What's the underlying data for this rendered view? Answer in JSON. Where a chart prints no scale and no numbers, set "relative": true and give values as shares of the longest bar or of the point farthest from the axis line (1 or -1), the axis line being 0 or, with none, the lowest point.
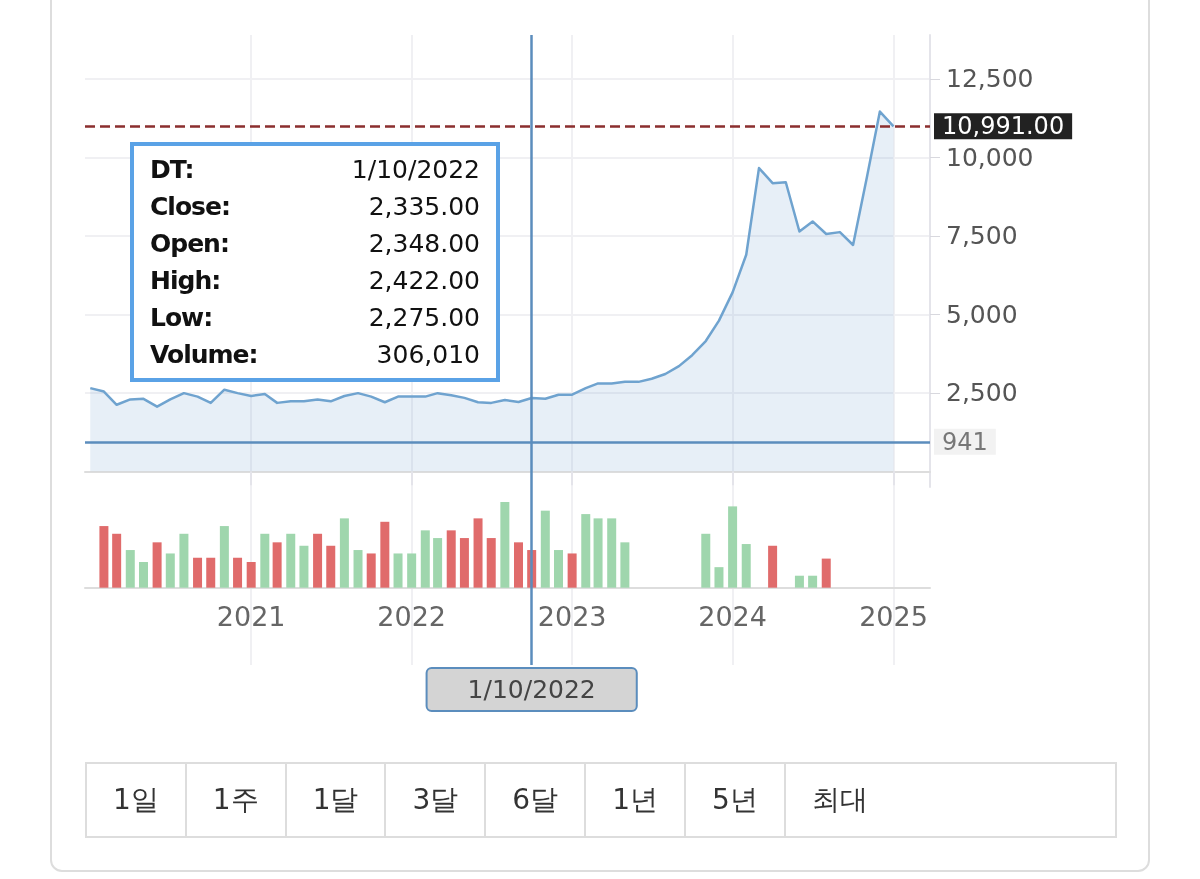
{
  "chart_data": [
    {
      "type": "area",
      "x": [
        "2020-01",
        "2020-02",
        "2020-03",
        "2020-04",
        "2020-05",
        "2020-06",
        "2020-07",
        "2020-08",
        "2020-09",
        "2020-10",
        "2020-11",
        "2020-12",
        "2021-01",
        "2021-02",
        "2021-03",
        "2021-04",
        "2021-05",
        "2021-06",
        "2021-07",
        "2021-08",
        "2021-09",
        "2021-10",
        "2021-11",
        "2021-12",
        "2022-01",
        "2022-02",
        "2022-03",
        "2022-04",
        "2022-05",
        "2022-06",
        "2022-07",
        "2022-08",
        "2022-09",
        "2022-10",
        "2022-11",
        "2022-12",
        "2023-01",
        "2023-02",
        "2023-03",
        "2023-04",
        "2023-05",
        "2023-06",
        "2023-07",
        "2023-08",
        "2023-09",
        "2023-10",
        "2023-11",
        "2023-12",
        "2024-01",
        "2024-02",
        "2024-03",
        "2024-04",
        "2024-05",
        "2024-06",
        "2024-07",
        "2024-08",
        "2024-09",
        "2024-10",
        "2024-11",
        "2024-12",
        "2025-01"
      ],
      "series": [
        {
          "color": "#6fa3cf",
          "values": [
            2650,
            2540,
            2120,
            2290,
            2310,
            2060,
            2290,
            2490,
            2380,
            2180,
            2600,
            2490,
            2400,
            2460,
            2180,
            2230,
            2230,
            2290,
            2230,
            2400,
            2490,
            2380,
            2200,
            2380,
            2380,
            2380,
            2490,
            2420,
            2340,
            2200,
            2180,
            2270,
            2210,
            2335,
            2310,
            2440,
            2440,
            2650,
            2800,
            2800,
            2850,
            2850,
            2950,
            3100,
            3350,
            3700,
            4150,
            4800,
            5700,
            6900,
            9660,
            9180,
            9210,
            7640,
            7960,
            7560,
            7620,
            7210,
            9340,
            11460,
            10991
          ]
        }
      ],
      "xlim": [
        "2019-12-20",
        "2025-03-25"
      ],
      "xticks": [
        "2021",
        "2022",
        "2023",
        "2024",
        "2025"
      ],
      "ylim": [
        -500,
        13900
      ],
      "yticks": [
        {
          "value": 2500,
          "label": "2,500"
        },
        {
          "value": 5000,
          "label": "5,000"
        },
        {
          "value": 7500,
          "label": "7,500"
        },
        {
          "value": 10000,
          "label": "10,000"
        },
        {
          "value": 12500,
          "label": "12,500"
        }
      ],
      "grid": true,
      "tick_labels": "y",
      "ref_lines": [
        {
          "axis": "y",
          "value": 10991,
          "label": "10,991.00",
          "color": "#8b2e2e",
          "line_style": "dashed"
        },
        {
          "axis": "y",
          "value": 941,
          "label": "941",
          "color": "#5b8dbd"
        },
        {
          "axis": "x",
          "value": "2022-10",
          "label": null,
          "color": "#5b8dbd"
        }
      ],
      "annotations": [
        "DT:",
        "1/10/2022",
        "Close:",
        "2,335.00",
        "Open:",
        "2,348.00",
        "High:",
        "2,422.00",
        "Low:",
        "2,275.00",
        "Volume:",
        "306,010"
      ]
    },
    {
      "type": "bar",
      "x": [
        "2020-02",
        "2020-03",
        "2020-04",
        "2020-05",
        "2020-06",
        "2020-07",
        "2020-08",
        "2020-09",
        "2020-10",
        "2020-11",
        "2020-12",
        "2021-01",
        "2021-02",
        "2021-03",
        "2021-04",
        "2021-05",
        "2021-06",
        "2021-07",
        "2021-08",
        "2021-09",
        "2021-10",
        "2021-11",
        "2021-12",
        "2022-01",
        "2022-02",
        "2022-03",
        "2022-04",
        "2022-05",
        "2022-06",
        "2022-07",
        "2022-08",
        "2022-09",
        "2022-10",
        "2022-11",
        "2022-12",
        "2023-01",
        "2023-02",
        "2023-03",
        "2023-04",
        "2023-05",
        "2023-06",
        "2023-07",
        "2023-08",
        "2023-09",
        "2023-10",
        "2023-11",
        "2023-12",
        "2024-01",
        "2024-02",
        "2024-03",
        "2024-04",
        "2024-05",
        "2024-06",
        "2024-07",
        "2024-08"
      ],
      "values": [
        0.72,
        0.63,
        0.44,
        0.3,
        0.53,
        0.4,
        0.63,
        0.35,
        0.35,
        0.72,
        0.35,
        0.3,
        0.63,
        0.53,
        0.63,
        0.49,
        0.63,
        0.49,
        0.81,
        0.44,
        0.4,
        0.77,
        0.4,
        0.4,
        0.67,
        0.58,
        0.67,
        0.58,
        0.81,
        0.58,
        1,
        0.53,
        0.44,
        0.9,
        0.44,
        0.4,
        0.86,
        0.81,
        0.81,
        0.53,
        null,
        null,
        null,
        null,
        null,
        0.63,
        0.24,
        0.95,
        0.51,
        null,
        0.49,
        null,
        0.14,
        0.14,
        0.34
      ],
      "colors": [
        "#e06b6b",
        "#e06b6b",
        "#9fd6ad",
        "#9fd6ad",
        "#e06b6b",
        "#9fd6ad",
        "#9fd6ad",
        "#e06b6b",
        "#e06b6b",
        "#9fd6ad",
        "#e06b6b",
        "#e06b6b",
        "#9fd6ad",
        "#e06b6b",
        "#9fd6ad",
        "#9fd6ad",
        "#e06b6b",
        "#e06b6b",
        "#9fd6ad",
        "#9fd6ad",
        "#e06b6b",
        "#e06b6b",
        "#9fd6ad",
        "#9fd6ad",
        "#9fd6ad",
        "#9fd6ad",
        "#e06b6b",
        "#e06b6b",
        "#e06b6b",
        "#e06b6b",
        "#9fd6ad",
        "#e06b6b",
        "#e06b6b",
        "#9fd6ad",
        "#9fd6ad",
        "#e06b6b",
        "#9fd6ad",
        "#9fd6ad",
        "#9fd6ad",
        "#9fd6ad",
        "#9fd6ad",
        "#9fd6ad",
        "#9fd6ad",
        "#9fd6ad",
        "#9fd6ad",
        "#9fd6ad",
        "#9fd6ad",
        "#9fd6ad",
        "#9fd6ad",
        "#9fd6ad",
        "#e06b6b",
        "#9fd6ad",
        "#9fd6ad",
        "#9fd6ad",
        "#e06b6b"
      ],
      "relative": true,
      "xlim": [
        "2019-12-20",
        "2025-03-25"
      ],
      "xticks": [
        "2021",
        "2022",
        "2023",
        "2024",
        "2025"
      ],
      "grid": "x",
      "ref_lines": [
        {
          "axis": "x",
          "value": "2022-10",
          "label": "1/10/2022",
          "color": "#5b8dbd"
        }
      ]
    },
    {
      "type": "other",
      "annotations": [
        "1일",
        "1주",
        "1달",
        "3달",
        "6달",
        "1년",
        "5년",
        "최대"
      ]
    }
  ]
}
